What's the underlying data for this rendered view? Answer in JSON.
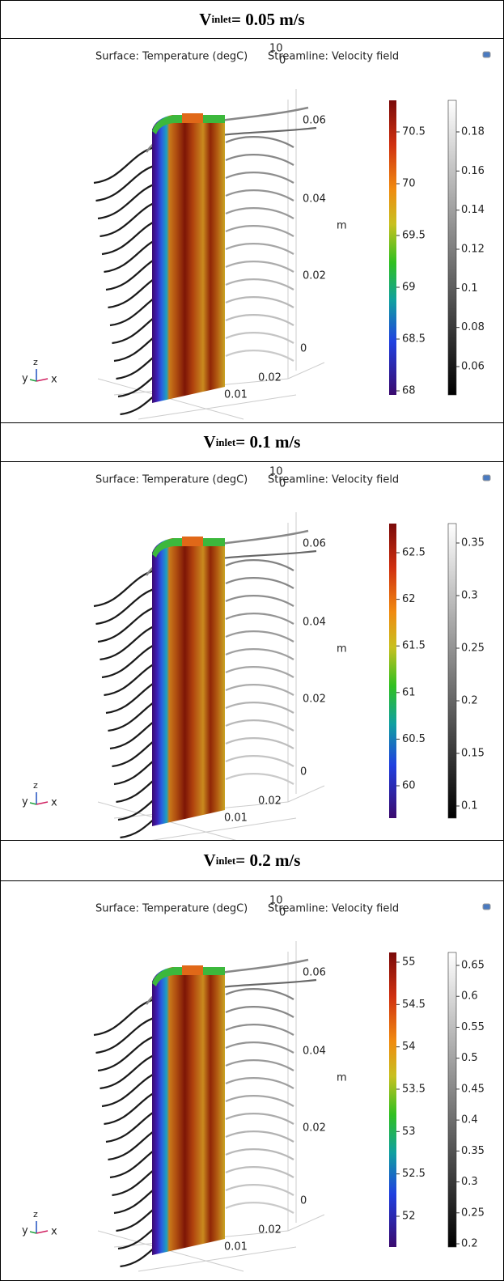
{
  "panels": [
    {
      "header": {
        "symbol": "V",
        "subscript": "inlet",
        "text": "= 0.05 m/s"
      },
      "plot": {
        "surface_title": "Surface: Temperature (degC)",
        "streamline_title": "Streamline: Velocity field",
        "corner_labels": [
          "10",
          "0"
        ],
        "z_ticks": [
          0.06,
          0.04,
          0.02,
          0
        ],
        "z_unit": "m",
        "x_ticks": [
          0.02,
          0.01
        ],
        "triad": [
          "y",
          "z",
          "x"
        ],
        "temperature_ticks": [
          70.5,
          70,
          69.5,
          69,
          68.5,
          68
        ],
        "velocity_ticks": [
          0.18,
          0.16,
          0.14,
          0.12,
          0.1,
          0.08,
          0.06
        ]
      }
    },
    {
      "header": {
        "symbol": "V",
        "subscript": "inlet",
        "text": "= 0.1 m/s"
      },
      "plot": {
        "surface_title": "Surface: Temperature (degC)",
        "streamline_title": "Streamline: Velocity field",
        "corner_labels": [
          "10",
          "0"
        ],
        "z_ticks": [
          0.06,
          0.04,
          0.02,
          0
        ],
        "z_unit": "m",
        "x_ticks": [
          0.02,
          0.01
        ],
        "triad": [
          "y",
          "z",
          "x"
        ],
        "temperature_ticks": [
          62.5,
          62,
          61.5,
          61,
          60.5,
          60
        ],
        "velocity_ticks": [
          0.35,
          0.3,
          0.25,
          0.2,
          0.15,
          0.1
        ]
      }
    },
    {
      "header": {
        "symbol": "V",
        "subscript": "inlet",
        "text": "= 0.2 m/s"
      },
      "plot": {
        "surface_title": "Surface: Temperature (degC)",
        "streamline_title": "Streamline: Velocity field",
        "corner_labels": [
          "10",
          "0"
        ],
        "z_ticks": [
          0.06,
          0.04,
          0.02,
          0
        ],
        "z_unit": "m",
        "x_ticks": [
          0.02,
          0.01
        ],
        "triad": [
          "y",
          "z",
          "x"
        ],
        "temperature_ticks": [
          55,
          54.5,
          54,
          53.5,
          53,
          52.5,
          52
        ],
        "velocity_ticks": [
          0.65,
          0.6,
          0.55,
          0.5,
          0.45,
          0.4,
          0.35,
          0.3,
          0.25,
          0.2
        ]
      }
    }
  ]
}
